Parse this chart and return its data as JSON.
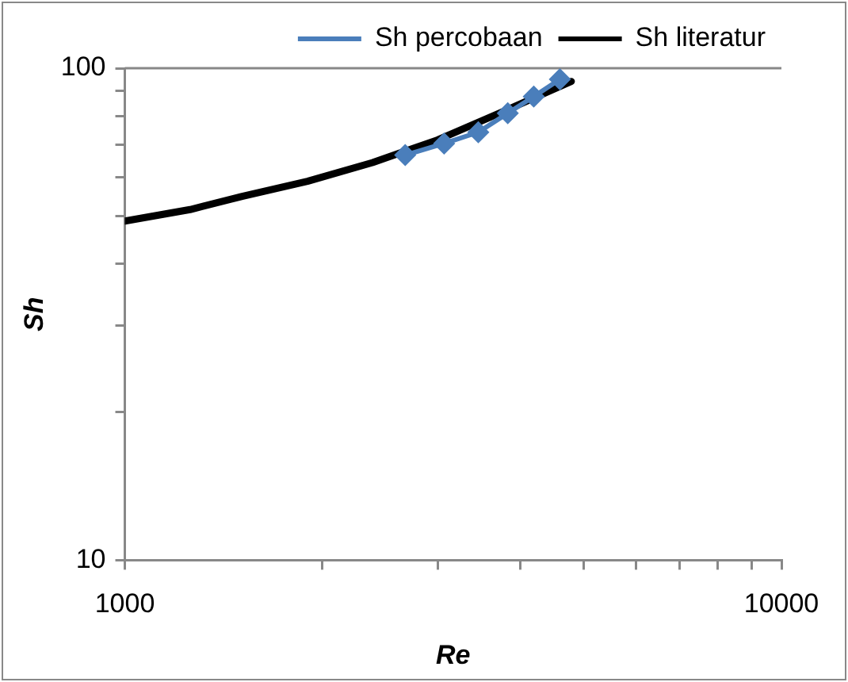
{
  "chart_data": {
    "type": "line",
    "xlabel": "Re",
    "ylabel": "Sh",
    "log": "xy",
    "legend": "top",
    "ref_lines": [
      {
        "axis": "y",
        "value": 100,
        "color": "#888888"
      }
    ],
    "xlim": [
      1000,
      10000
    ],
    "xticks": [
      1000,
      {
        "value": 2000,
        "label": null
      },
      {
        "value": 3000,
        "label": null
      },
      {
        "value": 4000,
        "label": null
      },
      {
        "value": 5000,
        "label": null
      },
      {
        "value": 6000,
        "label": null
      },
      {
        "value": 7000,
        "label": null
      },
      {
        "value": 8000,
        "label": null
      },
      {
        "value": 9000,
        "label": null
      },
      10000
    ],
    "ylim": [
      10,
      100
    ],
    "yticks": [
      10,
      {
        "value": 20,
        "label": null
      },
      {
        "value": 30,
        "label": null
      },
      {
        "value": 40,
        "label": null
      },
      {
        "value": 50,
        "label": null
      },
      {
        "value": 60,
        "label": null
      },
      {
        "value": 70,
        "label": null
      },
      {
        "value": 80,
        "label": null
      },
      {
        "value": 90,
        "label": null
      },
      100
    ],
    "series": [
      {
        "name": "Sh percobaan",
        "color": "#4a7ebb",
        "marker": "diamond",
        "x": [
          2673,
          3064,
          3454,
          3830,
          4196,
          4598
        ],
        "values": [
          66.6,
          70.3,
          74.1,
          81.0,
          87.6,
          94.9
        ]
      },
      {
        "name": "Sh literatur",
        "color": "#000000",
        "marker": "none",
        "x": [
          1000,
          1257,
          1509,
          1897,
          2384,
          2995,
          3764,
          4786
        ],
        "values": [
          48.9,
          51.6,
          54.9,
          58.9,
          64.3,
          71.5,
          81.6,
          94.0
        ]
      }
    ]
  }
}
